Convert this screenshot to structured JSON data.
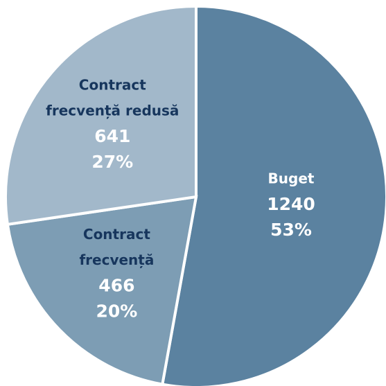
{
  "chart_data": {
    "type": "pie",
    "slices": [
      {
        "name_lines": [
          "Buget"
        ],
        "value": 1240,
        "percent": "53%",
        "color": "#5b82a0",
        "label_color": "#ffffff",
        "value_color": "#ffffff"
      },
      {
        "name_lines": [
          "Contract",
          "frecvență"
        ],
        "value": 466,
        "percent": "20%",
        "color": "#7d9db4",
        "label_color": "#17365d",
        "value_color": "#ffffff"
      },
      {
        "name_lines": [
          "Contract",
          "frecvență redusă"
        ],
        "value": 641,
        "percent": "27%",
        "color": "#a2b8ca",
        "label_color": "#17365d",
        "value_color": "#ffffff"
      }
    ]
  }
}
